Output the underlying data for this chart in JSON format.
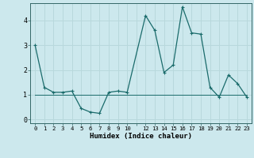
{
  "xlabel": "Humidex (Indice chaleur)",
  "background_color": "#cce8ed",
  "grid_color": "#b8d8dc",
  "line_color": "#1a6b6b",
  "xlim": [
    -0.5,
    23.5
  ],
  "ylim": [
    -0.15,
    4.7
  ],
  "xtick_labels": [
    "0",
    "1",
    "2",
    "3",
    "4",
    "5",
    "6",
    "7",
    "8",
    "9",
    "10",
    "",
    "12",
    "13",
    "14",
    "15",
    "16",
    "17",
    "18",
    "19",
    "20",
    "21",
    "22",
    "23"
  ],
  "xtick_positions": [
    0,
    1,
    2,
    3,
    4,
    5,
    6,
    7,
    8,
    9,
    10,
    11,
    12,
    13,
    14,
    15,
    16,
    17,
    18,
    19,
    20,
    21,
    22,
    23
  ],
  "yticks": [
    0,
    1,
    2,
    3,
    4
  ],
  "series1_x": [
    0,
    1,
    2,
    3,
    4,
    5,
    6,
    7,
    8,
    9,
    10,
    12,
    13,
    14,
    15,
    16,
    17,
    18,
    19,
    20,
    21,
    22,
    23
  ],
  "series1_y": [
    3.0,
    1.3,
    1.1,
    1.1,
    1.15,
    0.45,
    0.3,
    0.25,
    1.1,
    1.15,
    1.1,
    4.2,
    3.6,
    1.9,
    2.2,
    4.55,
    3.5,
    3.45,
    1.3,
    0.9,
    1.8,
    1.45,
    0.9
  ],
  "series2_x": [
    0,
    23
  ],
  "series2_y": [
    1.0,
    1.0
  ]
}
